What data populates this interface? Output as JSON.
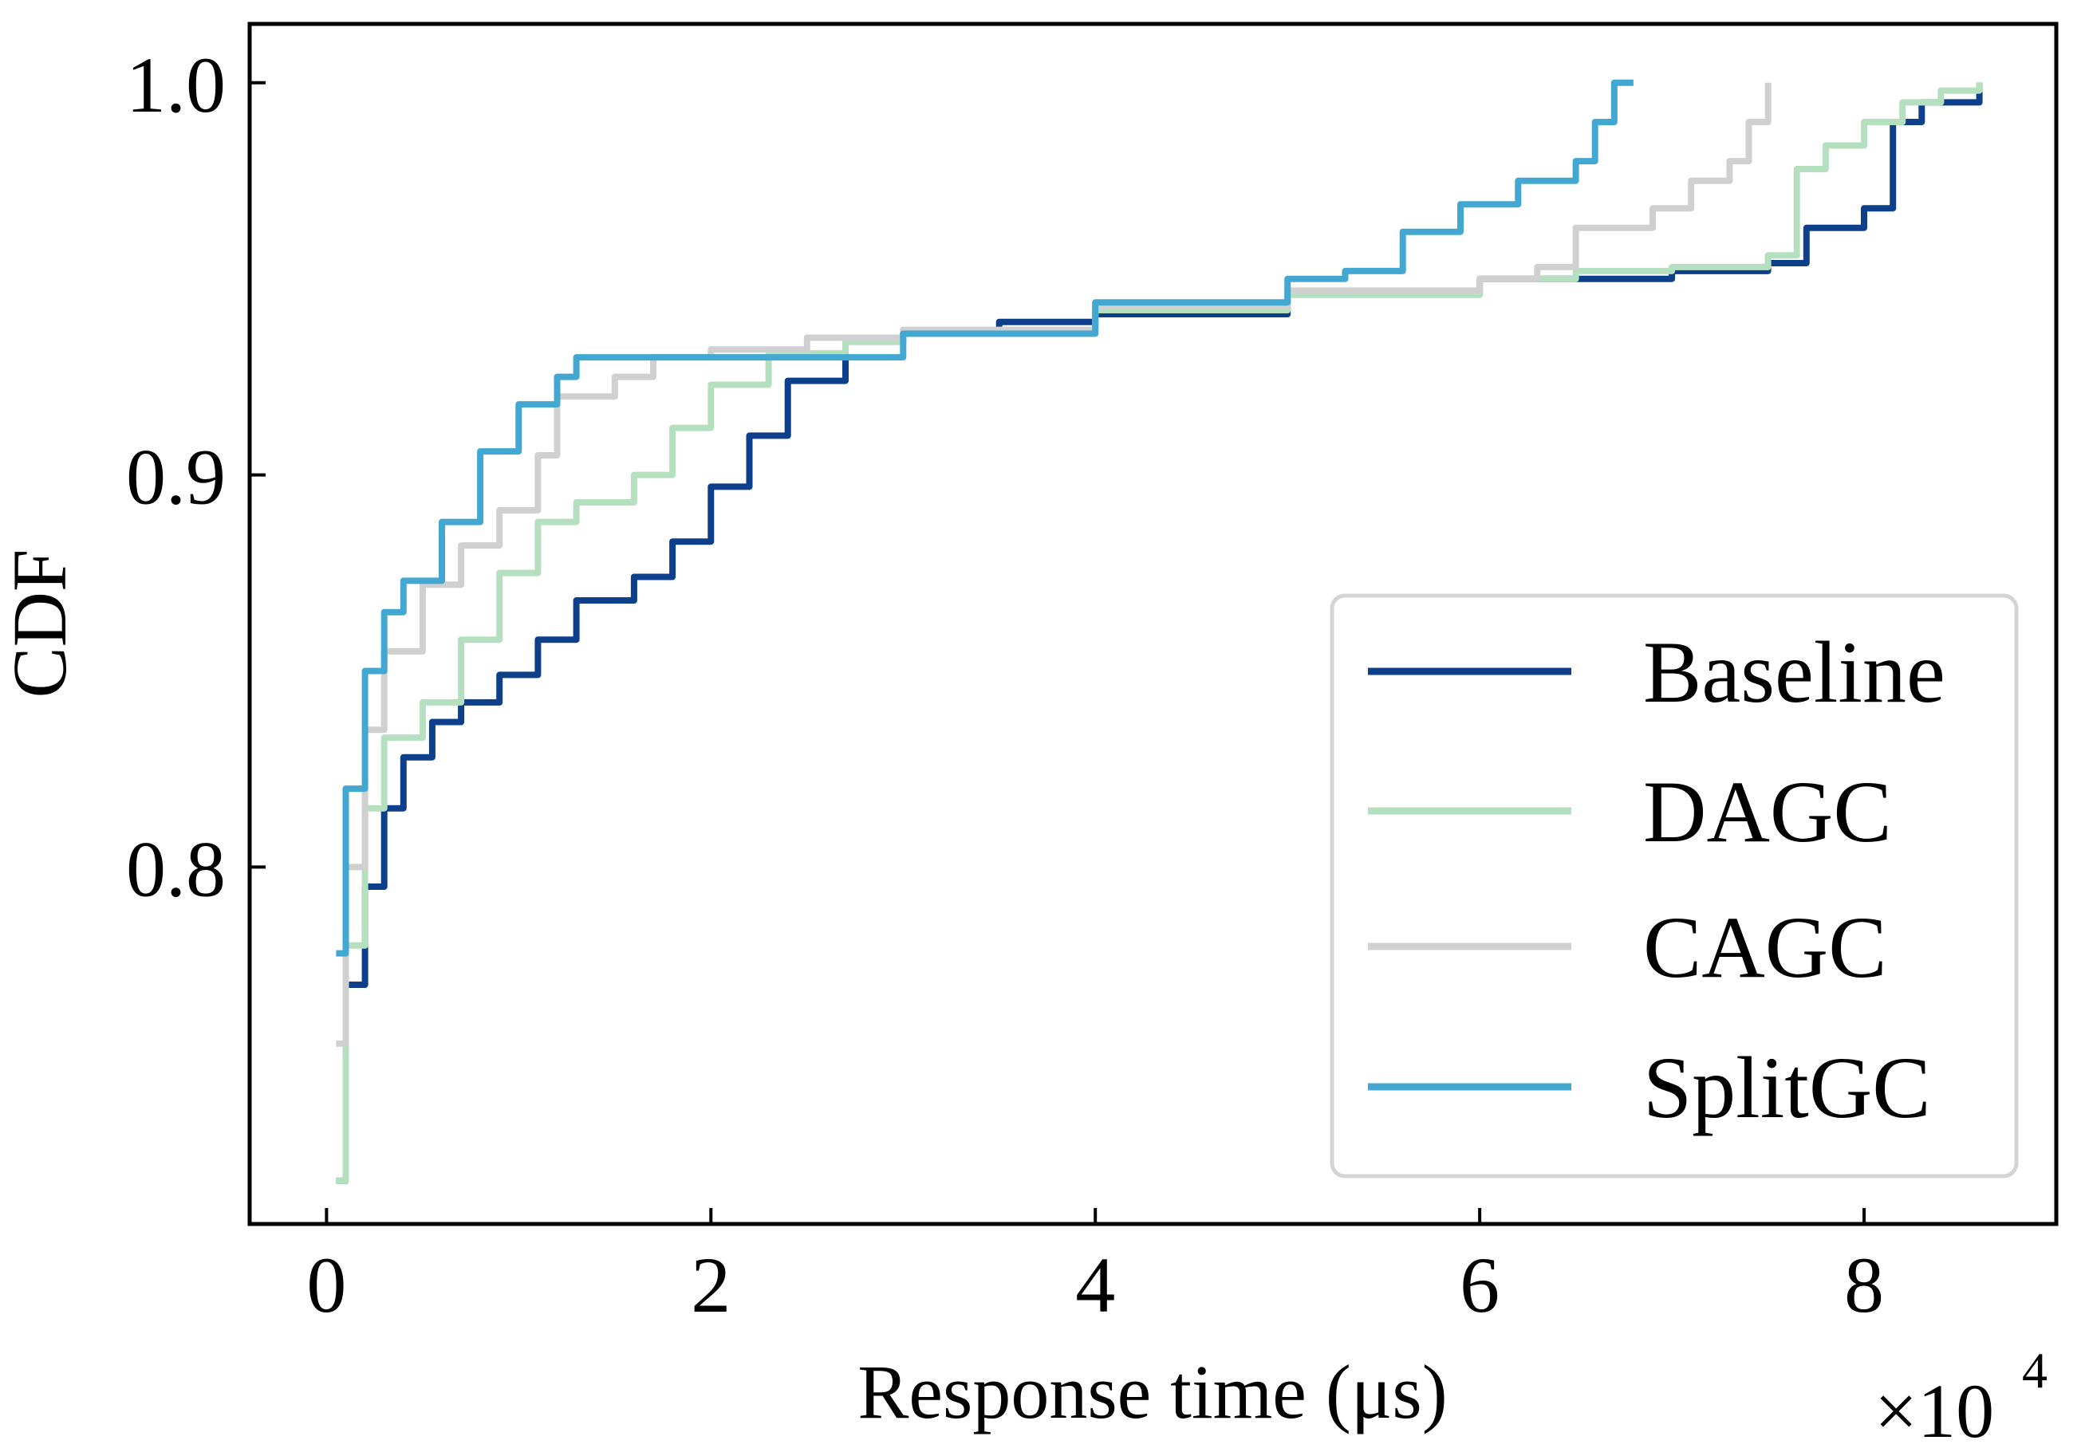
{
  "chart_data": {
    "type": "line",
    "title": "",
    "xlabel": "Response time (μs)",
    "ylabel": "CDF",
    "x_multiplier_label": "×10",
    "x_multiplier_exp": "4",
    "xlim": [
      -0.4,
      9.0
    ],
    "ylim": [
      0.709,
      1.015
    ],
    "xticks": [
      0,
      2,
      4,
      6,
      8
    ],
    "xtick_labels": [
      "0",
      "2",
      "4",
      "6",
      "8"
    ],
    "yticks": [
      0.8,
      0.9,
      1.0
    ],
    "ytick_labels": [
      "0.8",
      "0.9",
      "1.0"
    ],
    "grid": false,
    "legend_position": "lower-right",
    "series": [
      {
        "name": "Baseline",
        "color": "#0d3f8a",
        "x": [
          0.05,
          0.1,
          0.2,
          0.3,
          0.4,
          0.55,
          0.7,
          0.9,
          1.1,
          1.3,
          1.6,
          1.8,
          2.0,
          2.2,
          2.4,
          2.7,
          3.0,
          3.5,
          4.0,
          5.0,
          6.0,
          7.0,
          7.5,
          7.7,
          8.0,
          8.15,
          8.3,
          8.6
        ],
        "values": [
          0.72,
          0.77,
          0.795,
          0.815,
          0.828,
          0.837,
          0.842,
          0.849,
          0.858,
          0.868,
          0.874,
          0.883,
          0.897,
          0.91,
          0.924,
          0.934,
          0.936,
          0.939,
          0.941,
          0.946,
          0.95,
          0.952,
          0.954,
          0.963,
          0.968,
          0.99,
          0.995,
          1.0
        ]
      },
      {
        "name": "DAGC",
        "color": "#b5e0bf",
        "x": [
          0.05,
          0.1,
          0.2,
          0.3,
          0.5,
          0.7,
          0.9,
          1.1,
          1.3,
          1.6,
          1.8,
          2.0,
          2.3,
          2.7,
          3.0,
          4.0,
          5.0,
          6.0,
          6.5,
          7.0,
          7.5,
          7.65,
          7.8,
          8.0,
          8.2,
          8.4,
          8.6
        ],
        "values": [
          0.72,
          0.78,
          0.815,
          0.833,
          0.842,
          0.858,
          0.875,
          0.888,
          0.893,
          0.9,
          0.912,
          0.923,
          0.931,
          0.934,
          0.936,
          0.942,
          0.946,
          0.95,
          0.952,
          0.953,
          0.956,
          0.978,
          0.984,
          0.99,
          0.995,
          0.998,
          1.0
        ]
      },
      {
        "name": "CAGC",
        "color": "#d0d0d0",
        "x": [
          0.05,
          0.1,
          0.2,
          0.3,
          0.5,
          0.7,
          0.9,
          1.1,
          1.2,
          1.5,
          1.7,
          2.0,
          2.5,
          3.0,
          4.0,
          5.0,
          6.0,
          6.3,
          6.5,
          6.9,
          7.1,
          7.3,
          7.4,
          7.5
        ],
        "values": [
          0.755,
          0.8,
          0.835,
          0.855,
          0.872,
          0.882,
          0.891,
          0.905,
          0.92,
          0.925,
          0.93,
          0.932,
          0.935,
          0.937,
          0.943,
          0.947,
          0.95,
          0.953,
          0.963,
          0.968,
          0.975,
          0.98,
          0.99,
          1.0
        ]
      },
      {
        "name": "SplitGC",
        "color": "#43a8d1",
        "x": [
          0.05,
          0.1,
          0.2,
          0.3,
          0.4,
          0.6,
          0.8,
          1.0,
          1.2,
          1.3,
          2.0,
          3.0,
          4.0,
          5.0,
          5.3,
          5.6,
          5.9,
          6.2,
          6.5,
          6.6,
          6.7,
          6.8
        ],
        "values": [
          0.778,
          0.82,
          0.85,
          0.865,
          0.873,
          0.888,
          0.906,
          0.918,
          0.925,
          0.93,
          0.93,
          0.936,
          0.944,
          0.95,
          0.952,
          0.962,
          0.969,
          0.975,
          0.98,
          0.99,
          1.0,
          1.0
        ]
      }
    ]
  }
}
